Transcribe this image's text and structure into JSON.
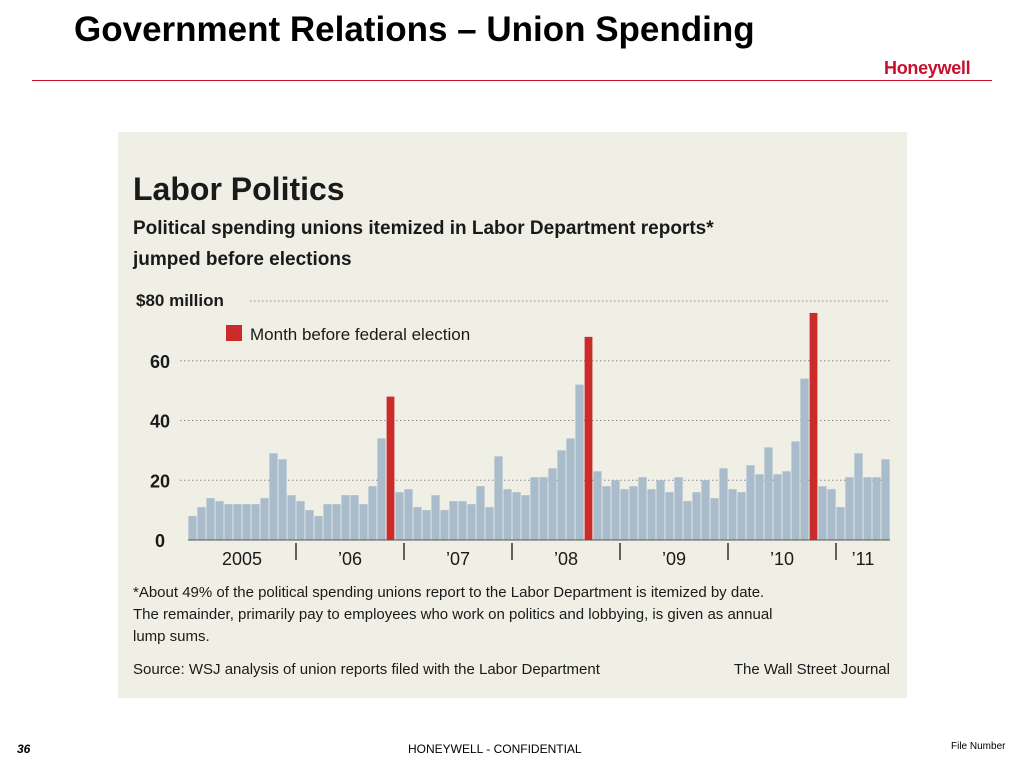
{
  "slide": {
    "title": "Government Relations – Union Spending",
    "logo": "Honeywell",
    "page_number": "36",
    "confidential": "HONEYWELL - CONFIDENTIAL",
    "file_number": "File Number"
  },
  "colors": {
    "accent": "#c8102e",
    "bar_regular": "#a8bccc",
    "bar_election": "#cc2b2b",
    "panel_bg": "#f0efe5"
  },
  "chart_data": {
    "type": "bar",
    "title": "Labor Politics",
    "subtitle_line1": "Political spending unions itemized in Labor Department reports*",
    "subtitle_line2": "jumped before elections",
    "ylabel": "",
    "y_unit_label": "$80 million",
    "y_ticks": [
      "0",
      "20",
      "40",
      "60"
    ],
    "ylim": [
      0,
      80
    ],
    "grid": true,
    "legend": {
      "label": "Month before federal election",
      "placement": "top-left"
    },
    "x_tick_labels": [
      "2005",
      "’06",
      "’07",
      "’08",
      "’09",
      "’10",
      "’11"
    ],
    "months_per_year": 12,
    "series": [
      {
        "values": [
          8,
          11,
          14,
          13,
          12,
          12,
          12,
          12,
          14,
          29,
          27,
          15,
          13,
          10,
          8,
          12,
          12,
          15,
          15,
          12,
          18,
          34,
          48,
          16,
          17,
          11,
          10,
          15,
          10,
          13,
          13,
          12,
          18,
          11,
          28,
          17,
          16,
          15,
          21,
          21,
          24,
          30,
          34,
          52,
          68,
          23,
          18,
          20,
          17,
          18,
          21,
          17,
          20,
          16,
          21,
          13,
          16,
          20,
          14,
          24,
          17,
          16,
          25,
          22,
          31,
          22,
          23,
          33,
          54,
          76,
          18,
          17,
          11,
          21,
          29,
          21,
          21,
          27
        ]
      }
    ],
    "election_month_indices": [
      21,
      22,
      44,
      68,
      69
    ],
    "highlight_indices": [
      22,
      44,
      69
    ],
    "footnote": [
      "*About 49% of the political spending unions report to the Labor Department is itemized by date.",
      "The remainder, primarily pay to employees who work on politics and lobbying, is given as annual",
      "lump sums."
    ],
    "source": "Source: WSJ analysis of union reports filed with the Labor Department",
    "credit": "The Wall Street Journal"
  }
}
